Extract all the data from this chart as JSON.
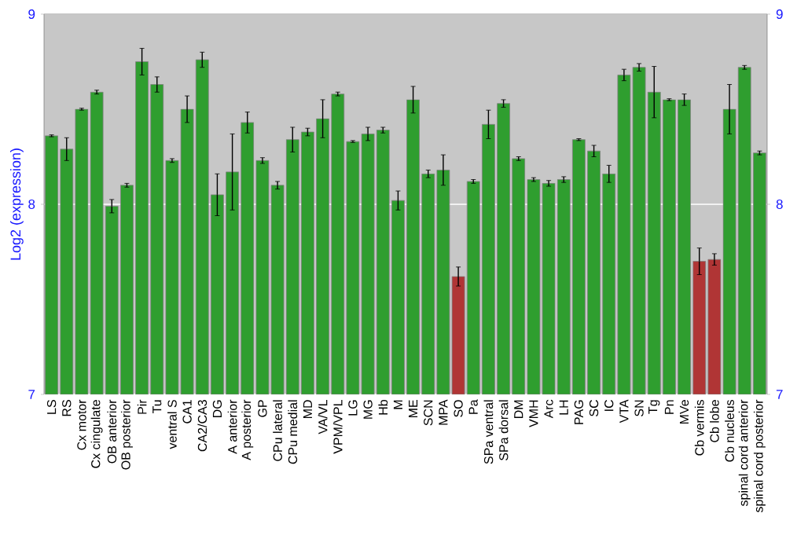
{
  "chart_data": {
    "type": "bar",
    "ylabel": "Log2 (expression)",
    "categories": [
      "LS",
      "RS",
      "Cx motor",
      "Cx cingulate",
      "OB anterior",
      "OB posterior",
      "Pir",
      "Tu",
      "ventral S",
      "CA1",
      "CA2/CA3",
      "DG",
      "A anterior",
      "A posterior",
      "GP",
      "CPu lateral",
      "CPu medial",
      "MD",
      "VA/VL",
      "VPM/VPL",
      "LG",
      "MG",
      "Hb",
      "M",
      "ME",
      "SCN",
      "MPA",
      "SO",
      "Pa",
      "SPa ventral",
      "SPa dorsal",
      "DM",
      "VMH",
      "Arc",
      "LH",
      "PAG",
      "SC",
      "IC",
      "VTA",
      "SN",
      "Tg",
      "Pn",
      "MVe",
      "Cb vermis",
      "Cb lobe",
      "Cb nucleus",
      "spinal cord anterior",
      "spinal cord posterior"
    ],
    "values": [
      8.36,
      8.29,
      8.5,
      8.59,
      7.99,
      8.1,
      8.75,
      8.63,
      8.23,
      8.5,
      8.76,
      8.05,
      8.17,
      8.43,
      8.23,
      8.1,
      8.34,
      8.38,
      8.45,
      8.58,
      8.33,
      8.37,
      8.39,
      8.02,
      8.55,
      8.16,
      8.18,
      7.62,
      8.12,
      8.42,
      8.53,
      8.24,
      8.13,
      8.11,
      8.13,
      8.34,
      8.28,
      8.16,
      8.68,
      8.72,
      8.59,
      8.55,
      8.55,
      7.7,
      7.71,
      8.5,
      8.72,
      8.27
    ],
    "errors": [
      0.005,
      0.06,
      0.005,
      0.01,
      0.035,
      0.01,
      0.07,
      0.04,
      0.01,
      0.07,
      0.04,
      0.11,
      0.2,
      0.055,
      0.015,
      0.02,
      0.065,
      0.02,
      0.1,
      0.01,
      0.005,
      0.035,
      0.015,
      0.05,
      0.07,
      0.02,
      0.08,
      0.05,
      0.01,
      0.075,
      0.02,
      0.01,
      0.01,
      0.015,
      0.015,
      0.005,
      0.03,
      0.045,
      0.03,
      0.02,
      0.135,
      0.005,
      0.03,
      0.07,
      0.03,
      0.13,
      0.01,
      0.01
    ],
    "colors": [
      "#2f9e2f",
      "#2f9e2f",
      "#2f9e2f",
      "#2f9e2f",
      "#2f9e2f",
      "#2f9e2f",
      "#2f9e2f",
      "#2f9e2f",
      "#2f9e2f",
      "#2f9e2f",
      "#2f9e2f",
      "#2f9e2f",
      "#2f9e2f",
      "#2f9e2f",
      "#2f9e2f",
      "#2f9e2f",
      "#2f9e2f",
      "#2f9e2f",
      "#2f9e2f",
      "#2f9e2f",
      "#2f9e2f",
      "#2f9e2f",
      "#2f9e2f",
      "#2f9e2f",
      "#2f9e2f",
      "#2f9e2f",
      "#2f9e2f",
      "#b03535",
      "#2f9e2f",
      "#2f9e2f",
      "#2f9e2f",
      "#2f9e2f",
      "#2f9e2f",
      "#2f9e2f",
      "#2f9e2f",
      "#2f9e2f",
      "#2f9e2f",
      "#2f9e2f",
      "#2f9e2f",
      "#2f9e2f",
      "#2f9e2f",
      "#2f9e2f",
      "#2f9e2f",
      "#b03535",
      "#b03535",
      "#2f9e2f",
      "#2f9e2f",
      "#2f9e2f"
    ],
    "ylim": [
      7,
      9
    ],
    "yticks": [
      7,
      8,
      9
    ],
    "y2lim": [
      7,
      9
    ],
    "y2ticks": [
      7,
      8,
      9
    ],
    "grid": "y"
  }
}
